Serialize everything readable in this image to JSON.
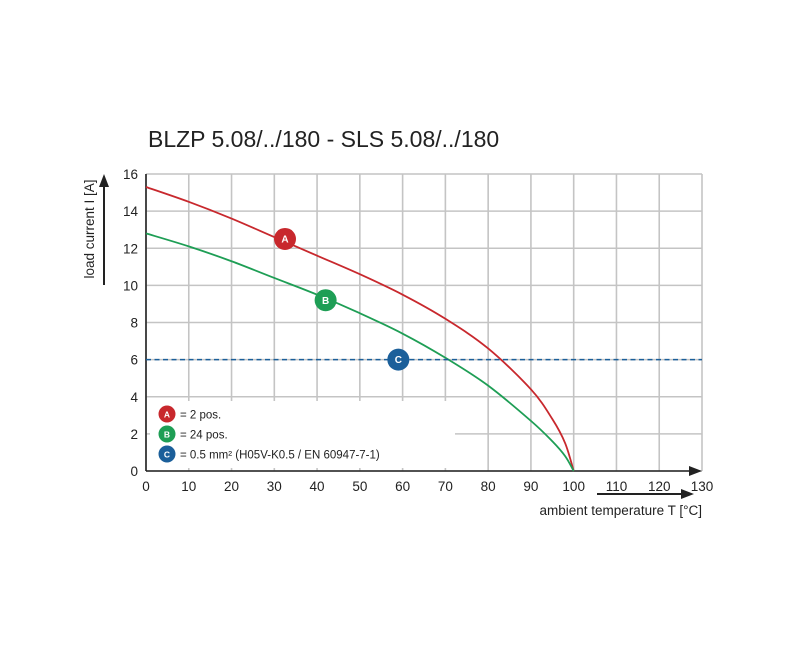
{
  "chart_data": {
    "type": "line",
    "title": "BLZP 5.08/../180 - SLS 5.08/../180",
    "xlabel": "ambient temperature T [°C]",
    "ylabel": "load current I [A]",
    "xlim": [
      0,
      130
    ],
    "ylim": [
      0,
      16
    ],
    "x_ticks": [
      "0",
      "10",
      "20",
      "30",
      "40",
      "50",
      "60",
      "70",
      "80",
      "90",
      "100",
      "110",
      "120",
      "130"
    ],
    "y_ticks": [
      "0",
      "2",
      "4",
      "6",
      "8",
      "10",
      "12",
      "14",
      "16"
    ],
    "grid": true,
    "legend_position": "bottom-left",
    "series": [
      {
        "name": "= 2 pos.",
        "marker": "A",
        "color": "#c8282d",
        "style": "solid",
        "x": [
          0,
          10,
          20,
          30,
          40,
          50,
          60,
          70,
          80,
          90,
          95,
          98,
          100
        ],
        "y": [
          15.3,
          14.5,
          13.6,
          12.6,
          11.6,
          10.6,
          9.5,
          8.2,
          6.6,
          4.4,
          2.8,
          1.5,
          0
        ],
        "marker_at": [
          32.5,
          12.5
        ]
      },
      {
        "name": "= 24 pos.",
        "marker": "B",
        "color": "#1e9e55",
        "style": "solid",
        "x": [
          0,
          10,
          20,
          30,
          40,
          50,
          60,
          70,
          80,
          90,
          95,
          98,
          100
        ],
        "y": [
          12.8,
          12.1,
          11.3,
          10.4,
          9.5,
          8.5,
          7.4,
          6.1,
          4.6,
          2.7,
          1.6,
          0.8,
          0
        ],
        "marker_at": [
          42,
          9.2
        ]
      },
      {
        "name": "= 0.5 mm² (H05V-K0.5 / EN 60947-7-1)",
        "marker": "C",
        "color": "#1b5f9a",
        "style": "dashed",
        "x": [
          0,
          130
        ],
        "y": [
          6,
          6
        ],
        "marker_at": [
          59,
          6
        ]
      }
    ]
  }
}
